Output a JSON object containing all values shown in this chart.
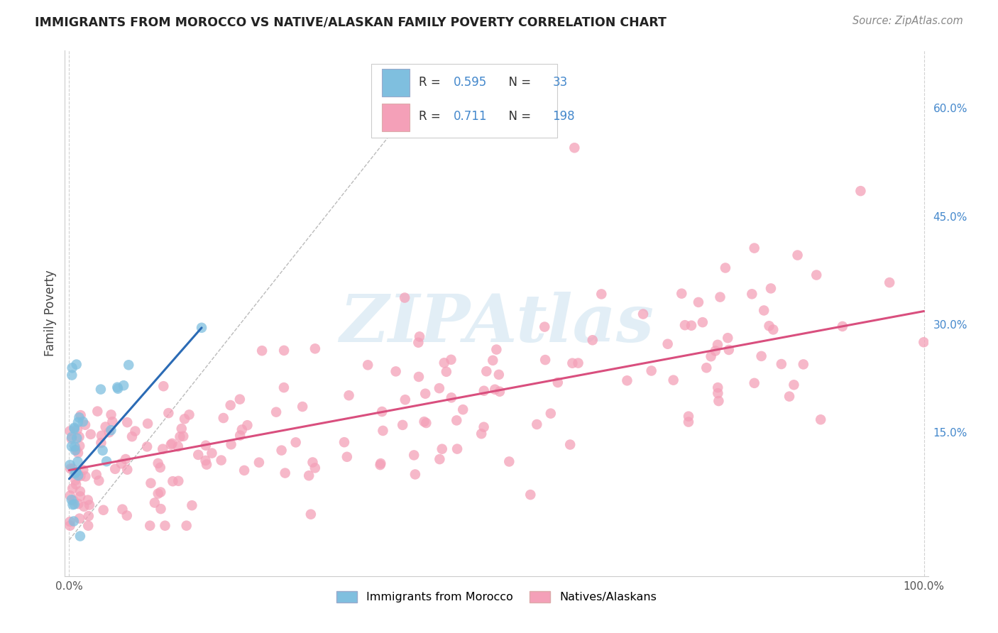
{
  "title": "IMMIGRANTS FROM MOROCCO VS NATIVE/ALASKAN FAMILY POVERTY CORRELATION CHART",
  "source": "Source: ZipAtlas.com",
  "ylabel": "Family Poverty",
  "legend_R1": "0.595",
  "legend_N1": "33",
  "legend_R2": "0.711",
  "legend_N2": "198",
  "blue_color": "#7fbfdf",
  "pink_color": "#f4a0b8",
  "blue_line_color": "#2b6bb5",
  "pink_line_color": "#d94f7e",
  "grid_color": "#cccccc",
  "watermark_color": "#d0e4f0",
  "watermark_text": "ZIPAtlas",
  "title_color": "#222222",
  "source_color": "#888888",
  "axis_label_color": "#444444",
  "tick_color": "#4488cc",
  "xlim": [
    -0.005,
    1.005
  ],
  "ylim": [
    -0.05,
    0.68
  ],
  "ytick_positions": [
    0.0,
    0.15,
    0.3,
    0.45,
    0.6
  ],
  "xtick_positions": [
    0.0,
    1.0
  ]
}
